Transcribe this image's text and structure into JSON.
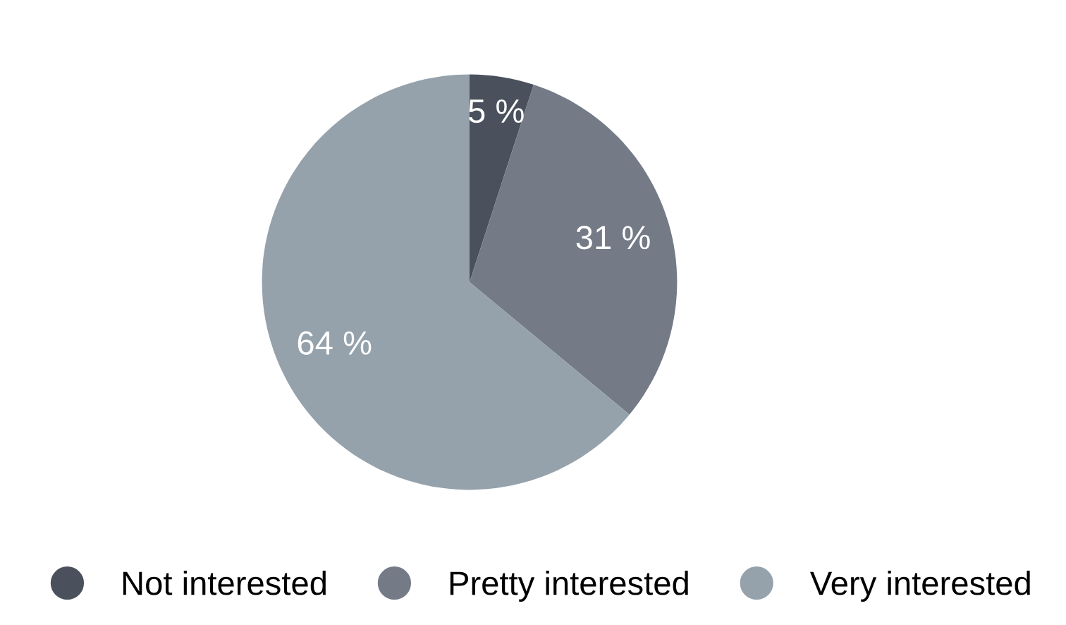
{
  "chart_data": {
    "type": "pie",
    "categories": [
      "Not interested",
      "Pretty interested",
      "Very interested"
    ],
    "values": [
      5,
      31,
      64
    ],
    "colors": [
      "#4a505c",
      "#747b87",
      "#95a2ac"
    ],
    "value_labels": [
      "5 %",
      "31 %",
      "64 %"
    ],
    "legend": "bottom"
  }
}
